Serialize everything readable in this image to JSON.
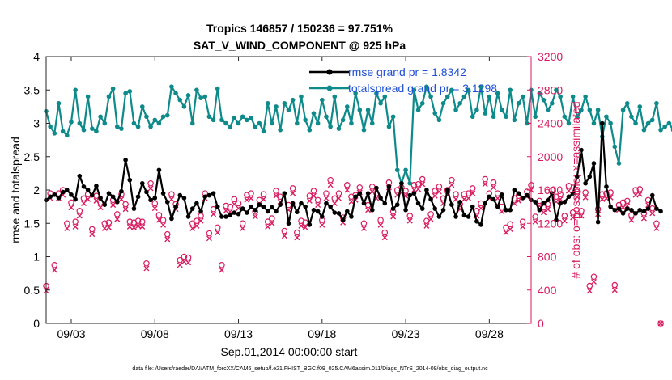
{
  "chart_data": {
    "type": "line",
    "title_line1": "Tropics 146857 / 150236 = 97.751%",
    "title_line2": "SAT_V_WIND_COMPONENT @ 925 hPa",
    "xlabel": "Sep.01,2014 00:00:00 start",
    "ylabel_left": "rmse and totalspread",
    "ylabel_right": "# of obs: o=possible; ×=assimilated",
    "footnote": "data file: /Users/raeder/DAI/ATM_forcXX/CAM6_setup/f.e21.FHIST_BGC.f09_025.CAM6assim.011/Diags_NTrS_2014-09/obs_diag_output.nc",
    "xlim": [
      1.5,
      30.5
    ],
    "ylim_left": [
      0,
      4
    ],
    "ylim_right": [
      0,
      3200
    ],
    "x_ticks": [
      3,
      8,
      13,
      18,
      23,
      28
    ],
    "x_tick_labels": [
      "09/03",
      "09/08",
      "09/13",
      "09/18",
      "09/23",
      "09/28"
    ],
    "y_left_ticks": [
      "0",
      "0.5",
      "1",
      "1.5",
      "2",
      "2.5",
      "3",
      "3.5",
      "4"
    ],
    "y_left_tick_values": [
      0,
      0.5,
      1,
      1.5,
      2,
      2.5,
      3,
      3.5,
      4
    ],
    "y_right_ticks": [
      "0",
      "400",
      "800",
      "1200",
      "1600",
      "2000",
      "2400",
      "2800",
      "3200"
    ],
    "y_right_tick_values": [
      0,
      400,
      800,
      1200,
      1600,
      2000,
      2400,
      2800,
      3200
    ],
    "colors": {
      "rmse": "#000000",
      "spread": "#0f8a8a",
      "obs": "#d81b60",
      "legend_text": "#1f4fd6"
    },
    "series": [
      {
        "name": "rmse grand pr = 1.8342",
        "axis": "left",
        "x_start": 1.5,
        "x_step": 0.25,
        "values": [
          1.85,
          1.9,
          1.93,
          1.88,
          1.97,
          2.0,
          1.93,
          1.86,
          2.21,
          2.05,
          2.0,
          1.92,
          2.06,
          1.88,
          1.78,
          1.95,
          1.9,
          1.82,
          1.98,
          2.45,
          2.15,
          1.72,
          1.9,
          2.1,
          1.97,
          1.85,
          1.88,
          2.3,
          1.95,
          1.82,
          1.57,
          1.75,
          1.92,
          1.88,
          1.6,
          1.72,
          1.8,
          1.68,
          1.9,
          1.92,
          1.95,
          1.75,
          1.6,
          1.6,
          1.62,
          1.66,
          1.64,
          1.72,
          1.66,
          1.75,
          1.7,
          1.78,
          1.75,
          1.68,
          1.74,
          1.68,
          1.78,
          1.95,
          1.5,
          1.8,
          1.67,
          1.8,
          1.75,
          1.48,
          1.7,
          1.68,
          1.6,
          1.8,
          1.75,
          1.66,
          1.65,
          1.55,
          1.68,
          1.6,
          1.9,
          1.95,
          1.8,
          1.95,
          1.7,
          2.03,
          1.88,
          1.8,
          2.05,
          1.72,
          1.78,
          2.1,
          1.7,
          1.92,
          1.95,
          1.8,
          1.72,
          2.0,
          1.86,
          1.72,
          1.6,
          1.7,
          2.0,
          1.78,
          1.6,
          1.82,
          1.62,
          1.6,
          1.75,
          1.53,
          1.48,
          1.8,
          1.9,
          1.86,
          1.75,
          1.93,
          1.7,
          1.7,
          2.0,
          1.95,
          1.88,
          1.92,
          1.85,
          1.82,
          1.7,
          1.8,
          1.85,
          1.95,
          1.55,
          1.8,
          1.82,
          1.9,
          1.95,
          2.2,
          2.6,
          2.1,
          2.2,
          2.4,
          1.52,
          3.0,
          2.05,
          1.75,
          1.7,
          1.72,
          1.65,
          1.72,
          1.7,
          1.65,
          1.7,
          1.68,
          1.72,
          1.92,
          1.72,
          1.68
        ]
      },
      {
        "name": "totalspread grand pr = 3.1298",
        "axis": "left",
        "x_start": 1.5,
        "x_step": 0.25,
        "values": [
          3.18,
          2.95,
          2.85,
          3.3,
          2.88,
          2.82,
          3.02,
          3.5,
          3.0,
          2.9,
          3.4,
          2.92,
          2.88,
          3.1,
          3.0,
          3.4,
          3.52,
          2.95,
          2.92,
          3.45,
          3.48,
          3.0,
          2.95,
          3.25,
          3.1,
          2.95,
          3.05,
          3.0,
          3.1,
          3.12,
          3.55,
          3.45,
          3.35,
          3.25,
          3.42,
          3.0,
          3.5,
          3.38,
          3.4,
          3.1,
          3.05,
          3.52,
          3.05,
          3.0,
          2.95,
          3.08,
          3.0,
          3.1,
          3.05,
          3.08,
          2.95,
          3.0,
          2.88,
          3.3,
          3.0,
          3.25,
          2.9,
          3.3,
          3.2,
          3.35,
          3.0,
          3.4,
          3.05,
          2.9,
          3.15,
          3.0,
          3.35,
          3.1,
          2.95,
          3.4,
          2.92,
          3.05,
          3.25,
          3.0,
          3.45,
          3.2,
          2.9,
          3.2,
          3.0,
          3.45,
          3.3,
          3.4,
          2.95,
          3.1,
          2.3,
          2.1,
          2.3,
          2.1,
          3.5,
          3.2,
          3.3,
          3.55,
          3.4,
          3.15,
          3.05,
          3.3,
          3.4,
          3.5,
          3.2,
          3.3,
          3.4,
          3.5,
          3.1,
          3.2,
          3.55,
          3.15,
          3.4,
          3.1,
          3.45,
          3.2,
          3.1,
          3.5,
          3.05,
          3.3,
          3.4,
          3.0,
          3.5,
          3.1,
          3.45,
          3.35,
          3.2,
          3.3,
          3.5,
          3.4,
          3.1,
          3.0,
          3.4,
          3.1,
          3.2,
          3.4,
          3.2,
          3.0,
          3.2,
          2.8,
          3.1,
          3.0,
          2.65,
          2.4,
          3.2,
          3.3,
          3.1,
          3.0,
          3.25,
          2.9,
          3.0,
          3.05,
          3.3,
          2.9,
          2.95,
          3.0,
          2.9,
          2.95,
          3.25
        ]
      }
    ],
    "obs_possible": {
      "x_start": 1.5,
      "x_step": 0.25,
      "values": [
        450,
        1560,
        700,
        1560,
        1600,
        1200,
        1450,
        1220,
        1350,
        1500,
        1550,
        1130,
        1530,
        1450,
        1200,
        1210,
        1480,
        1310,
        1550,
        1430,
        1220,
        1210,
        1230,
        1220,
        720,
        1680,
        1440,
        1300,
        1240,
        1070,
        1550,
        1430,
        760,
        800,
        790,
        1200,
        1230,
        1290,
        1560,
        1080,
        1370,
        1150,
        700,
        1410,
        1400,
        1490,
        1440,
        1200,
        1540,
        1560,
        1340,
        1480,
        1550,
        1220,
        1260,
        1590,
        1520,
        1110,
        1420,
        1620,
        1090,
        1230,
        1210,
        1530,
        1590,
        1480,
        1240,
        1560,
        1720,
        1500,
        1560,
        1270,
        1660,
        1520,
        1540,
        1630,
        1200,
        1420,
        1640,
        1560,
        1240,
        1090,
        1690,
        1340,
        1600,
        1630,
        1590,
        1290,
        1660,
        1670,
        1730,
        1230,
        1310,
        1590,
        1640,
        1500,
        1600,
        1720,
        1550,
        1430,
        1550,
        1560,
        1620,
        1350,
        1440,
        1730,
        1560,
        1690,
        1560,
        1400,
        1150,
        1190,
        1500,
        1530,
        1220,
        1580,
        1660,
        1280,
        1470,
        1390,
        1430,
        1600,
        1520,
        1550,
        1290,
        1650,
        1330,
        1580,
        1350,
        1570,
        450,
        560,
        1370,
        1550,
        1560,
        1570,
        460,
        1420,
        1450,
        1470,
        1300,
        1600,
        1610,
        1320,
        1480,
        1380,
        1200,
        0
      ]
    },
    "legend": {
      "location": "top-right"
    }
  }
}
